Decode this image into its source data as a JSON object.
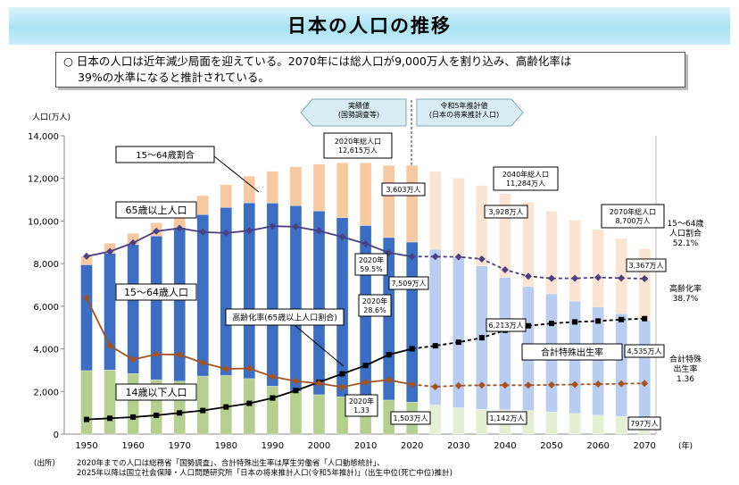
{
  "page": {
    "title": "日本の人口の推移",
    "summary_line1": "○ 日本の人口は近年減少局面を迎えている。2070年には総人口が9,000万人を割り込み、高齢化率は",
    "summary_line2": "39%の水準になると推計されている。",
    "footnote_label": "(出所)",
    "footnote_line1": "2020年までの人口は総務省「国勢調査」、合計特殊出生率は厚生労働省「人口動態統計」、",
    "footnote_line2": "2025年以降は国立社会保障・人口問題研究所「日本の将来推計人口(令和5年推計)」(出生中位(死亡中位)推計)"
  },
  "chart_data": {
    "type": "bar",
    "ylabel": "人口(万人)",
    "xunit": "(年)",
    "ylim": [
      0,
      14000
    ],
    "yticks": [
      0,
      2000,
      4000,
      6000,
      8000,
      10000,
      12000,
      14000
    ],
    "ytick_labels": [
      "0",
      "2,000",
      "4,000",
      "6,000",
      "8,000",
      "10,000",
      "12,000",
      "14,000"
    ],
    "xticks": [
      1950,
      1960,
      1970,
      1980,
      1990,
      2000,
      2010,
      2020,
      2030,
      2040,
      2050,
      2060,
      2070
    ],
    "years": [
      1950,
      1955,
      1960,
      1965,
      1970,
      1975,
      1980,
      1985,
      1990,
      1995,
      2000,
      2005,
      2010,
      2015,
      2020,
      2025,
      2030,
      2035,
      2040,
      2045,
      2050,
      2055,
      2060,
      2065,
      2070
    ],
    "projection_start": 2025,
    "stacked_series": [
      {
        "name": "14歳以下人口",
        "color": "#b5cf8f",
        "projected_color": "#e5efd4",
        "values": [
          2979,
          3012,
          2843,
          2553,
          2482,
          2723,
          2751,
          2603,
          2249,
          2001,
          1847,
          1752,
          1684,
          1595,
          1503,
          1363,
          1240,
          1169,
          1142,
          1103,
          1041,
          966,
          893,
          836,
          797
        ]
      },
      {
        "name": "15～64歳人口",
        "color": "#3c6fc4",
        "projected_color": "#b8cdef",
        "values": [
          4966,
          5473,
          6047,
          6744,
          7212,
          7581,
          7883,
          8251,
          8590,
          8716,
          8622,
          8409,
          8103,
          7629,
          7509,
          7310,
          7076,
          6722,
          6213,
          5832,
          5540,
          5275,
          5078,
          4809,
          4535
        ]
      },
      {
        "name": "65歳以上人口",
        "color": "#f7c9a0",
        "projected_color": "#fce4d2",
        "values": [
          411,
          475,
          535,
          618,
          733,
          887,
          1065,
          1247,
          1493,
          1828,
          2204,
          2576,
          2948,
          3387,
          3603,
          3653,
          3696,
          3773,
          3928,
          3945,
          3888,
          3786,
          3644,
          3529,
          3367
        ]
      }
    ],
    "line_aging_rate": {
      "name": "高齢化率(65歳以上人口割合)",
      "color": "#000000",
      "values": [
        4.9,
        5.3,
        5.7,
        6.3,
        7.1,
        7.9,
        9.1,
        10.3,
        12.1,
        14.6,
        17.4,
        20.2,
        23.0,
        26.6,
        28.6,
        29.6,
        30.8,
        32.3,
        34.8,
        36.3,
        37.1,
        37.6,
        37.9,
        38.4,
        38.7
      ]
    },
    "line_working_ratio": {
      "name": "15～64歳割合",
      "color": "#4a3f82",
      "values": [
        59.6,
        61.2,
        64.1,
        68.0,
        69.0,
        67.7,
        67.4,
        68.2,
        69.7,
        69.5,
        68.1,
        66.1,
        63.8,
        60.8,
        59.5,
        59.5,
        59.4,
        58.7,
        55.1,
        52.9,
        52.2,
        52.2,
        52.5,
        52.3,
        52.1
      ]
    },
    "line_fertility": {
      "name": "合計特殊出生率",
      "color": "#a6521e",
      "values": [
        3.65,
        2.37,
        2.0,
        2.14,
        2.13,
        1.91,
        1.75,
        1.76,
        1.54,
        1.42,
        1.36,
        1.26,
        1.39,
        1.45,
        1.33,
        1.27,
        1.3,
        1.31,
        1.31,
        1.31,
        1.32,
        1.33,
        1.34,
        1.35,
        1.36
      ]
    },
    "section_labels": {
      "actual": "実績値\n(国勢調査等)",
      "projected": "令和5年推計値\n(日本の将来推計人口)"
    },
    "series_labels": {
      "working_ratio": "15～64歳割合",
      "elderly": "65歳以上人口",
      "working": "15～64歳人口",
      "aging": "高齢化率(65歳以上人口割合)",
      "fertility": "合計特殊出生率",
      "children": "14歳以下人口"
    },
    "annotations": {
      "total2020": "2020年総人口\n12,615万人",
      "total2040": "2040年総人口\n11,284万人",
      "total2070": "2070年総人口\n8,700万人",
      "ratio2020": "2020年\n59.5%",
      "aging2020": "2020年\n28.6%",
      "fert2020": "2020年\n1.33",
      "v3603": "3,603万人",
      "v3928": "3,928万人",
      "v3367": "3,367万人",
      "v7509": "7,509万人",
      "v6213": "6,213万人",
      "v4535": "4,535万人",
      "v1503": "1,503万人",
      "v1142": "1,142万人",
      "v797": "797万人",
      "right_ratio": "15～64歳\n人口割合\n52.1%",
      "right_aging": "高齢化率\n38.7%",
      "right_fert": "合計特殊\n出生率\n1.36"
    }
  }
}
